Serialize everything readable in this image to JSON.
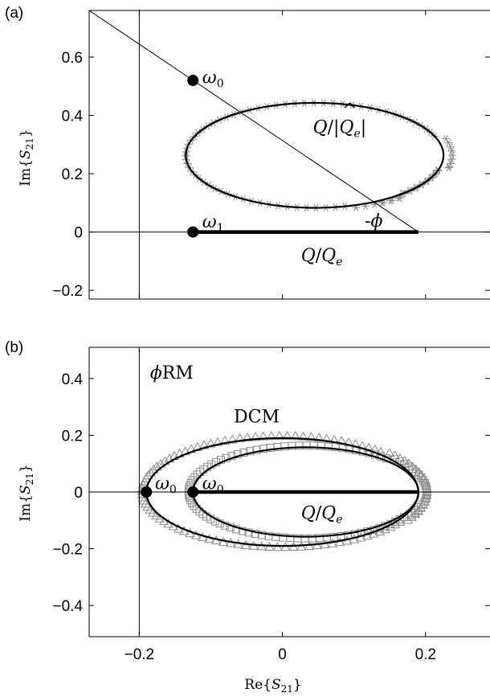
{
  "chart_data": [
    {
      "panel_label": "(a)",
      "type": "scatter",
      "xlim": [
        -0.27,
        0.29
      ],
      "ylim": [
        -0.23,
        0.76
      ],
      "ylabel": "Im{S21}",
      "xlabel": "",
      "yticks": [
        -0.2,
        0,
        0.2,
        0.4,
        0.6
      ],
      "ytick_labels": [
        "−0.2",
        "0",
        "0.2",
        "0.4",
        "0.6"
      ],
      "xticks": [
        -0.2,
        0,
        0.2
      ],
      "xtick_labels": [],
      "circle_fit": {
        "center": [
          0.045,
          0.263
        ],
        "radius": 0.18
      },
      "data_marker": "asterisk",
      "data_arc_deg": [
        -60,
        348
      ],
      "chord": {
        "from": [
          -0.125,
          0.0
        ],
        "to": [
          0.19,
          0.0
        ]
      },
      "diagonal_line": {
        "from": [
          -0.27,
          0.76
        ],
        "to": [
          0.19,
          0.0
        ]
      },
      "vertical_line_x": -0.2,
      "points": [
        {
          "name": "ω0",
          "x": -0.125,
          "y": 0.52
        },
        {
          "name": "ω1",
          "x": -0.125,
          "y": 0.0
        }
      ],
      "annotations": [
        {
          "text": "Q/|Q̂e|",
          "x": 0.08,
          "y": 0.35
        },
        {
          "text": "-ϕ",
          "x": 0.125,
          "y": 0.035
        },
        {
          "text": "Q/Qe",
          "x": 0.055,
          "y": -0.09
        }
      ]
    },
    {
      "panel_label": "(b)",
      "type": "scatter",
      "xlim": [
        -0.27,
        0.29
      ],
      "ylim": [
        -0.51,
        0.51
      ],
      "ylabel": "Im{S21}",
      "xlabel": "Re{S21}",
      "yticks": [
        -0.4,
        -0.2,
        0,
        0.2,
        0.4
      ],
      "ytick_labels": [
        "−0.4",
        "−0.2",
        "0",
        "0.2",
        "0.4"
      ],
      "xticks": [
        -0.2,
        0,
        0.2
      ],
      "xtick_labels": [
        "−0.2",
        "0",
        "0.2"
      ],
      "vertical_line_x": -0.2,
      "chord": {
        "from": [
          -0.125,
          0.0
        ],
        "to": [
          0.19,
          0.0
        ]
      },
      "series": [
        {
          "name": "ϕRM",
          "marker": "triangle",
          "center": [
            0.0,
            0.0
          ],
          "radius": 0.19,
          "data_arc_deg": [
            -20,
            340
          ]
        },
        {
          "name": "DCM",
          "marker": "square",
          "center": [
            0.0325,
            0.0
          ],
          "radius": 0.1575,
          "data_arc_deg": [
            -40,
            320
          ]
        }
      ],
      "points": [
        {
          "name": "ω0",
          "x": -0.19,
          "y": 0.0
        },
        {
          "name": "ω0",
          "x": -0.125,
          "y": 0.0
        }
      ],
      "annotations": [
        {
          "text": "Q/Qe",
          "x": 0.055,
          "y": -0.085
        }
      ]
    }
  ]
}
